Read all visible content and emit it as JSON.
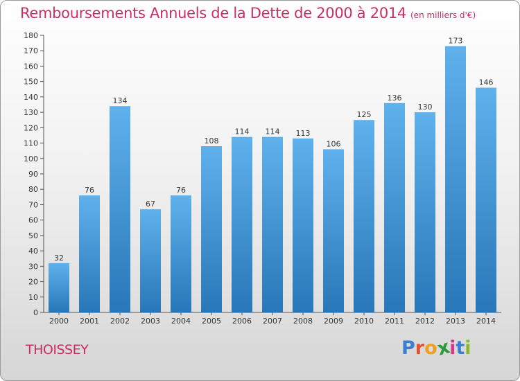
{
  "title": "Remboursements Annuels de la Dette de 2000 à 2014",
  "unit": "(en milliers d'€)",
  "commune": "THOISSEY",
  "logo": {
    "letters": [
      "P",
      "r",
      "o",
      "x",
      "i",
      "t",
      "i"
    ],
    "colors": [
      "#3a7fd0",
      "#e8502a",
      "#f0a020",
      "#2a9a3a",
      "#d63a8a",
      "#3a7fd0",
      "#8ab828"
    ]
  },
  "colors": {
    "bar_light": "#5fb1ec",
    "bar_dark": "#2877b8",
    "title": "#cc2e62"
  },
  "chart_data": {
    "type": "bar",
    "title": "Remboursements Annuels de la Dette de 2000 à 2014",
    "xlabel": "",
    "ylabel": "",
    "ylim": [
      0,
      180
    ],
    "yticks": [
      0,
      10,
      20,
      30,
      40,
      50,
      60,
      70,
      80,
      90,
      100,
      110,
      120,
      130,
      140,
      150,
      160,
      170,
      180
    ],
    "grid": false,
    "categories": [
      "2000",
      "2001",
      "2002",
      "2003",
      "2004",
      "2005",
      "2006",
      "2007",
      "2008",
      "2009",
      "2010",
      "2011",
      "2012",
      "2013",
      "2014"
    ],
    "values": [
      32,
      76,
      134,
      67,
      76,
      108,
      114,
      114,
      113,
      106,
      125,
      136,
      130,
      173,
      146
    ]
  }
}
